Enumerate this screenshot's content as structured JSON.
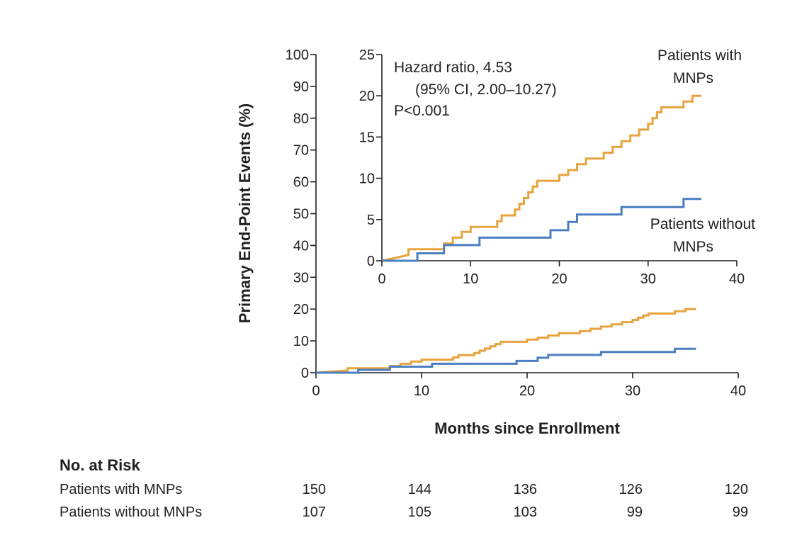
{
  "chart_data": {
    "type": "line",
    "ylabel": "Primary End-Point Events (%)",
    "xlabel": "Months since Enrollment",
    "main": {
      "xlim": [
        0,
        40
      ],
      "ylim": [
        0,
        100
      ],
      "x_ticks": [
        0,
        10,
        20,
        30,
        40
      ],
      "y_ticks": [
        0,
        10,
        20,
        30,
        40,
        50,
        60,
        70,
        80,
        90,
        100
      ]
    },
    "inset": {
      "xlim": [
        0,
        40
      ],
      "ylim": [
        0,
        25
      ],
      "x_ticks": [
        0,
        10,
        20,
        30,
        40
      ],
      "y_ticks": [
        0,
        5,
        10,
        15,
        20,
        25
      ],
      "annotation_lines": [
        "Hazard ratio, 4.53",
        "(95% CI, 2.00–10.27)",
        "P<0.001"
      ],
      "series_labels": [
        {
          "series": "with",
          "lines": [
            "Patients with",
            "MNPs"
          ]
        },
        {
          "series": "without",
          "lines": [
            "Patients without",
            "MNPs"
          ]
        }
      ]
    },
    "series": [
      {
        "key": "with",
        "color": "#e8a33d",
        "steps": [
          [
            0,
            0
          ],
          [
            3,
            0.7
          ],
          [
            3,
            1.4
          ],
          [
            7,
            1.4
          ],
          [
            7,
            2.1
          ],
          [
            8,
            2.1
          ],
          [
            8,
            2.8
          ],
          [
            9,
            2.8
          ],
          [
            9,
            3.5
          ],
          [
            10,
            3.5
          ],
          [
            10,
            4.1
          ],
          [
            13,
            4.1
          ],
          [
            13,
            4.8
          ],
          [
            13.5,
            4.8
          ],
          [
            13.5,
            5.5
          ],
          [
            15,
            5.5
          ],
          [
            15,
            6.2
          ],
          [
            15.5,
            6.2
          ],
          [
            15.5,
            6.9
          ],
          [
            16,
            6.9
          ],
          [
            16,
            7.6
          ],
          [
            16.5,
            7.6
          ],
          [
            16.5,
            8.3
          ],
          [
            17,
            8.3
          ],
          [
            17,
            9.0
          ],
          [
            17.5,
            9.0
          ],
          [
            17.5,
            9.7
          ],
          [
            20,
            9.7
          ],
          [
            20,
            10.4
          ],
          [
            21,
            10.4
          ],
          [
            21,
            11.0
          ],
          [
            22,
            11.0
          ],
          [
            22,
            11.7
          ],
          [
            23,
            11.7
          ],
          [
            23,
            12.4
          ],
          [
            25,
            12.4
          ],
          [
            25,
            13.1
          ],
          [
            26,
            13.1
          ],
          [
            26,
            13.8
          ],
          [
            27,
            13.8
          ],
          [
            27,
            14.5
          ],
          [
            28,
            14.5
          ],
          [
            28,
            15.2
          ],
          [
            29,
            15.2
          ],
          [
            29,
            15.9
          ],
          [
            30,
            15.9
          ],
          [
            30,
            16.6
          ],
          [
            30.5,
            16.6
          ],
          [
            30.5,
            17.3
          ],
          [
            31,
            17.3
          ],
          [
            31,
            18.0
          ],
          [
            31.5,
            18.0
          ],
          [
            31.5,
            18.6
          ],
          [
            34,
            18.6
          ],
          [
            34,
            19.3
          ],
          [
            35,
            19.3
          ],
          [
            35,
            20.0
          ],
          [
            36,
            20.0
          ]
        ]
      },
      {
        "key": "without",
        "color": "#4a7fc1",
        "steps": [
          [
            0,
            0
          ],
          [
            4,
            0
          ],
          [
            4,
            0.9
          ],
          [
            7,
            0.9
          ],
          [
            7,
            1.9
          ],
          [
            11,
            1.9
          ],
          [
            11,
            2.8
          ],
          [
            19,
            2.8
          ],
          [
            19,
            3.7
          ],
          [
            21,
            3.7
          ],
          [
            21,
            4.7
          ],
          [
            22,
            4.7
          ],
          [
            22,
            5.6
          ],
          [
            27,
            5.6
          ],
          [
            27,
            6.5
          ],
          [
            34,
            6.5
          ],
          [
            34,
            7.5
          ],
          [
            36,
            7.5
          ]
        ]
      }
    ],
    "at_risk": {
      "title": "No. at Risk",
      "months": [
        0,
        10,
        20,
        30,
        40
      ],
      "rows": [
        {
          "label": "Patients with MNPs",
          "values": [
            "150",
            "144",
            "136",
            "126",
            "120"
          ]
        },
        {
          "label": "Patients without MNPs",
          "values": [
            "107",
            "105",
            "103",
            "99",
            "99"
          ]
        }
      ]
    }
  }
}
